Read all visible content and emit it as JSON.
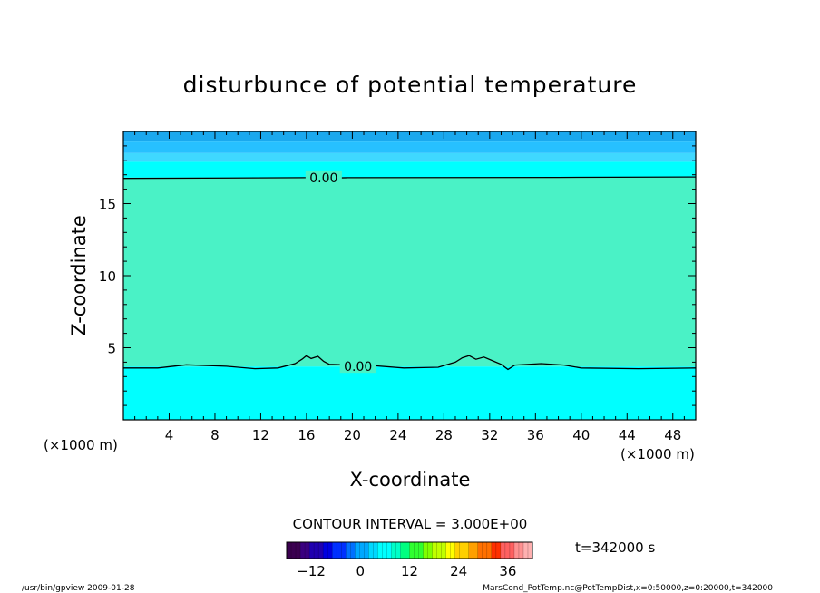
{
  "chart_data": {
    "type": "heatmap",
    "title": "disturbunce of potential temperature",
    "xlabel": "X-coordinate",
    "ylabel": "Z-coordinate",
    "x_unit_left": "(×1000 m)",
    "x_unit_right": "(×1000 m)",
    "xlim": [
      0,
      50
    ],
    "ylim": [
      0,
      20
    ],
    "x_ticks": [
      4,
      8,
      12,
      16,
      20,
      24,
      28,
      32,
      36,
      40,
      44,
      48
    ],
    "y_ticks": [
      5,
      10,
      15
    ],
    "contour_interval_label": "CONTOUR INTERVAL = 3.000E+00",
    "time_label": "t=342000 s",
    "contour_labels": [
      {
        "text": "0.00",
        "x": 17.5,
        "z": 16.8
      },
      {
        "text": "0.00",
        "x": 20.5,
        "z": 3.7
      }
    ],
    "contour_zero_upper": [
      [
        0,
        16.75
      ],
      [
        16.0,
        16.8
      ],
      [
        18.5,
        16.78
      ],
      [
        19.6,
        16.8
      ],
      [
        38.0,
        16.82
      ],
      [
        50,
        16.85
      ]
    ],
    "contour_zero_lower": [
      [
        0,
        3.6
      ],
      [
        3.0,
        3.6
      ],
      [
        5.5,
        3.82
      ],
      [
        9.0,
        3.72
      ],
      [
        11.5,
        3.55
      ],
      [
        13.5,
        3.6
      ],
      [
        15.0,
        3.9
      ],
      [
        15.6,
        4.2
      ],
      [
        16.0,
        4.45
      ],
      [
        16.4,
        4.25
      ],
      [
        17.0,
        4.4
      ],
      [
        17.5,
        4.05
      ],
      [
        18.0,
        3.85
      ],
      [
        22.0,
        3.75
      ],
      [
        24.5,
        3.6
      ],
      [
        27.5,
        3.65
      ],
      [
        29.0,
        4.0
      ],
      [
        29.6,
        4.3
      ],
      [
        30.2,
        4.45
      ],
      [
        30.8,
        4.2
      ],
      [
        31.5,
        4.35
      ],
      [
        32.4,
        4.05
      ],
      [
        33.0,
        3.85
      ],
      [
        33.6,
        3.5
      ],
      [
        34.2,
        3.8
      ],
      [
        36.5,
        3.9
      ],
      [
        38.5,
        3.8
      ],
      [
        40.0,
        3.6
      ],
      [
        45.0,
        3.55
      ],
      [
        50,
        3.6
      ]
    ],
    "color_bands": [
      {
        "z": [
          19.3,
          20
        ],
        "value": -9,
        "color": "#1aa8ee"
      },
      {
        "z": [
          18.5,
          19.3
        ],
        "value": -6,
        "color": "#27c0ff"
      },
      {
        "z": [
          17.9,
          18.5
        ],
        "value": -4,
        "color": "#3fd8ff"
      },
      {
        "z": [
          16.8,
          17.9
        ],
        "value": -2,
        "color": "#00ffff"
      },
      {
        "z": [
          3.7,
          16.8
        ],
        "value": 1.5,
        "color": "#4af2c6"
      },
      {
        "z": [
          0,
          3.7
        ],
        "value": -2,
        "color": "#00ffff"
      }
    ],
    "colorbar": {
      "min": -18,
      "max": 42,
      "tick_values": [
        -12,
        0,
        12,
        24,
        36
      ],
      "tick_labels": [
        "−12",
        "0",
        "12",
        "24",
        "36"
      ],
      "colors": [
        "#3b0050",
        "#3a0080",
        "#2000b0",
        "#0000e0",
        "#0030ff",
        "#0070ff",
        "#00a8ff",
        "#00d8ff",
        "#00ffff",
        "#00ffc8",
        "#00ff80",
        "#30ff30",
        "#80ff00",
        "#c0ff00",
        "#ffff00",
        "#ffd000",
        "#ffa000",
        "#ff7000",
        "#ff3000",
        "#ff6060",
        "#ff9090",
        "#ffb0b0"
      ]
    }
  },
  "footer": {
    "left": "/usr/bin/gpview  2009-01-28",
    "right": "MarsCond_PotTemp.nc@PotTempDist,x=0:50000,z=0:20000,t=342000"
  }
}
